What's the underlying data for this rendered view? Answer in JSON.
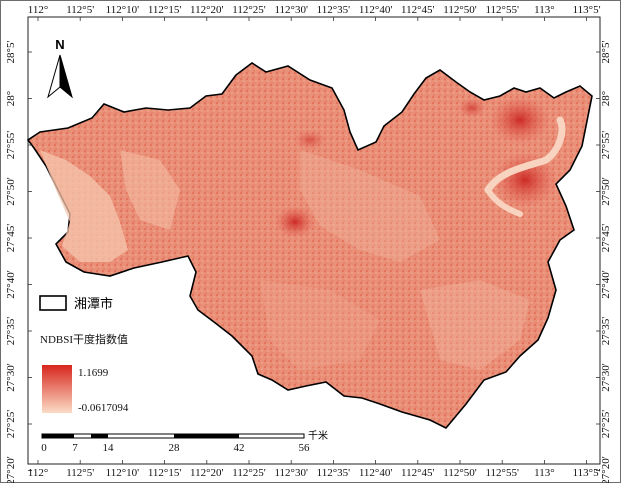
{
  "map": {
    "north_label": "N",
    "top_lon_labels": [
      "112°",
      "112°5'",
      "112°10'",
      "112°15'",
      "112°20'",
      "112°25'",
      "112°30'",
      "112°35'",
      "112°40'",
      "112°45'",
      "112°50'",
      "112°55'",
      "113°",
      "113°5'"
    ],
    "bottom_lon_labels": [
      "112°",
      "112°5'",
      "112°10'",
      "112°15'",
      "112°20'",
      "112°25'",
      "112°30'",
      "112°35'",
      "112°40'",
      "112°45'",
      "112°50'",
      "112°55'",
      "113°",
      "113°5'"
    ],
    "left_lat_labels": [
      "28°5'",
      "28°",
      "27°55'",
      "27°50'",
      "27°45'",
      "27°40'",
      "27°35'",
      "27°30'",
      "27°25'",
      "27°20'"
    ],
    "right_lat_labels": [
      "28°5'",
      "28°",
      "27°55'",
      "27°50'",
      "27°45'",
      "27°40'",
      "27°35'",
      "27°30'",
      "27°25'",
      "27°20'"
    ]
  },
  "legend": {
    "boundary_label": "湘潭市",
    "index_title": "NDBSI干度指数值",
    "max_value": "1.1699",
    "min_value": "-0.0617094",
    "color_high": "#d7261d",
    "color_low": "#fbdcc6"
  },
  "scalebar": {
    "ticks": [
      "0",
      "7",
      "14",
      "28",
      "42",
      "56"
    ],
    "unit": "千米"
  }
}
